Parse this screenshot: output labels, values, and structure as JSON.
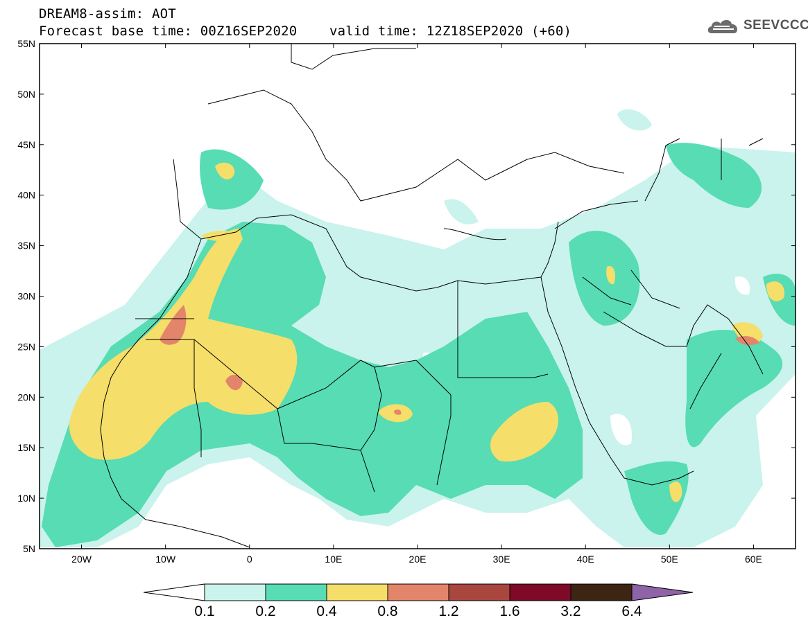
{
  "header": {
    "title": "DREAM8-assim: AOT",
    "base_time_label": "Forecast base time:",
    "base_time": "00Z16SEP2020",
    "valid_time_label": "valid time:",
    "valid_time": "12Z18SEP2020 (+60)"
  },
  "logo": {
    "text": "SEEVCCC",
    "icon": "cloud-icon"
  },
  "map": {
    "projection": "lat-lon",
    "lon_range": [
      -25,
      65
    ],
    "lat_range": [
      5,
      55
    ],
    "lat_ticks": [
      {
        "value": 55,
        "label": "55N"
      },
      {
        "value": 50,
        "label": "50N"
      },
      {
        "value": 45,
        "label": "45N"
      },
      {
        "value": 40,
        "label": "40N"
      },
      {
        "value": 35,
        "label": "35N"
      },
      {
        "value": 30,
        "label": "30N"
      },
      {
        "value": 25,
        "label": "25N"
      },
      {
        "value": 20,
        "label": "20N"
      },
      {
        "value": 15,
        "label": "15N"
      },
      {
        "value": 10,
        "label": "10N"
      },
      {
        "value": 5,
        "label": "5N"
      }
    ],
    "lon_ticks": [
      {
        "value": -20,
        "label": "20W"
      },
      {
        "value": -10,
        "label": "10W"
      },
      {
        "value": 0,
        "label": "0"
      },
      {
        "value": 10,
        "label": "10E"
      },
      {
        "value": 20,
        "label": "20E"
      },
      {
        "value": 30,
        "label": "30E"
      },
      {
        "value": 40,
        "label": "40E"
      },
      {
        "value": 50,
        "label": "50E"
      },
      {
        "value": 60,
        "label": "60E"
      }
    ]
  },
  "colorbar": {
    "labels": [
      "0.1",
      "0.2",
      "0.4",
      "0.8",
      "1.2",
      "1.6",
      "3.2",
      "6.4"
    ],
    "under_color": "#ffffff",
    "colors": [
      "#c9f3ec",
      "#57dcb4",
      "#f5de6a",
      "#e3856a",
      "#a9473f",
      "#7e0a28",
      "#3d2413"
    ],
    "over_color": "#8e63a8"
  },
  "aot_regions": [
    {
      "level": "0.1-0.2",
      "color": "#c9f3ec",
      "area": "Sahara, Arabia, Mediterranean, Caspian"
    },
    {
      "level": "0.2-0.4",
      "color": "#57dcb4",
      "area": "Northwest Africa, Sahel, Sudan, Arabia"
    },
    {
      "level": "0.4-0.8",
      "color": "#f5de6a",
      "area": "Western Sahara, Mauritania, Sudan, Persian Gulf"
    },
    {
      "level": "0.8-1.2",
      "color": "#e3856a",
      "area": "Western Sahara, Algeria, Gulf of Oman"
    }
  ]
}
